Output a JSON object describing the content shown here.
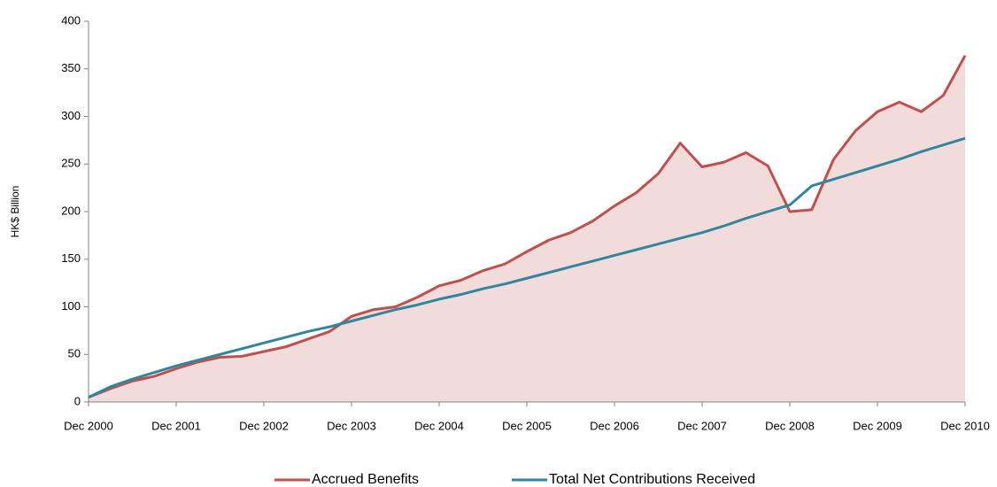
{
  "chart_data": {
    "type": "line",
    "y_label": "HK$ Billion",
    "categories": [
      "Dec 2000",
      null,
      null,
      null,
      "Dec 2001",
      null,
      null,
      null,
      "Dec 2002",
      null,
      null,
      null,
      "Dec 2003",
      null,
      null,
      null,
      "Dec 2004",
      null,
      null,
      null,
      "Dec 2005",
      null,
      null,
      null,
      "Dec 2006",
      null,
      null,
      null,
      "Dec 2007",
      null,
      null,
      null,
      "Dec 2008",
      null,
      null,
      null,
      "Dec 2009",
      null,
      null,
      null,
      "Dec 2010"
    ],
    "series": [
      {
        "name": "Accrued Benefits",
        "color": "#c0504d",
        "fill": "#f2dcdb",
        "values": [
          5,
          14,
          22,
          27,
          35,
          42,
          47,
          48,
          53,
          58,
          66,
          74,
          90,
          97,
          100,
          110,
          122,
          128,
          138,
          145,
          158,
          170,
          178,
          190,
          206,
          220,
          240,
          272,
          247,
          252,
          262,
          248,
          200,
          202,
          255,
          285,
          305,
          315,
          305,
          322,
          364
        ]
      },
      {
        "name": "Total Net Contributions  Received",
        "color": "#31859c",
        "values": [
          5,
          16,
          24,
          31,
          38,
          44,
          50,
          56,
          62,
          68,
          74,
          79,
          85,
          91,
          97,
          102,
          108,
          113,
          119,
          124,
          130,
          136,
          142,
          148,
          154,
          160,
          166,
          172,
          178,
          185,
          193,
          200,
          207,
          227,
          234,
          241,
          248,
          255,
          263,
          270,
          277
        ]
      }
    ],
    "ylim": [
      0,
      400
    ],
    "yticks": [
      0,
      50,
      100,
      150,
      200,
      250,
      300,
      350,
      400
    ],
    "legend": "bottom"
  }
}
